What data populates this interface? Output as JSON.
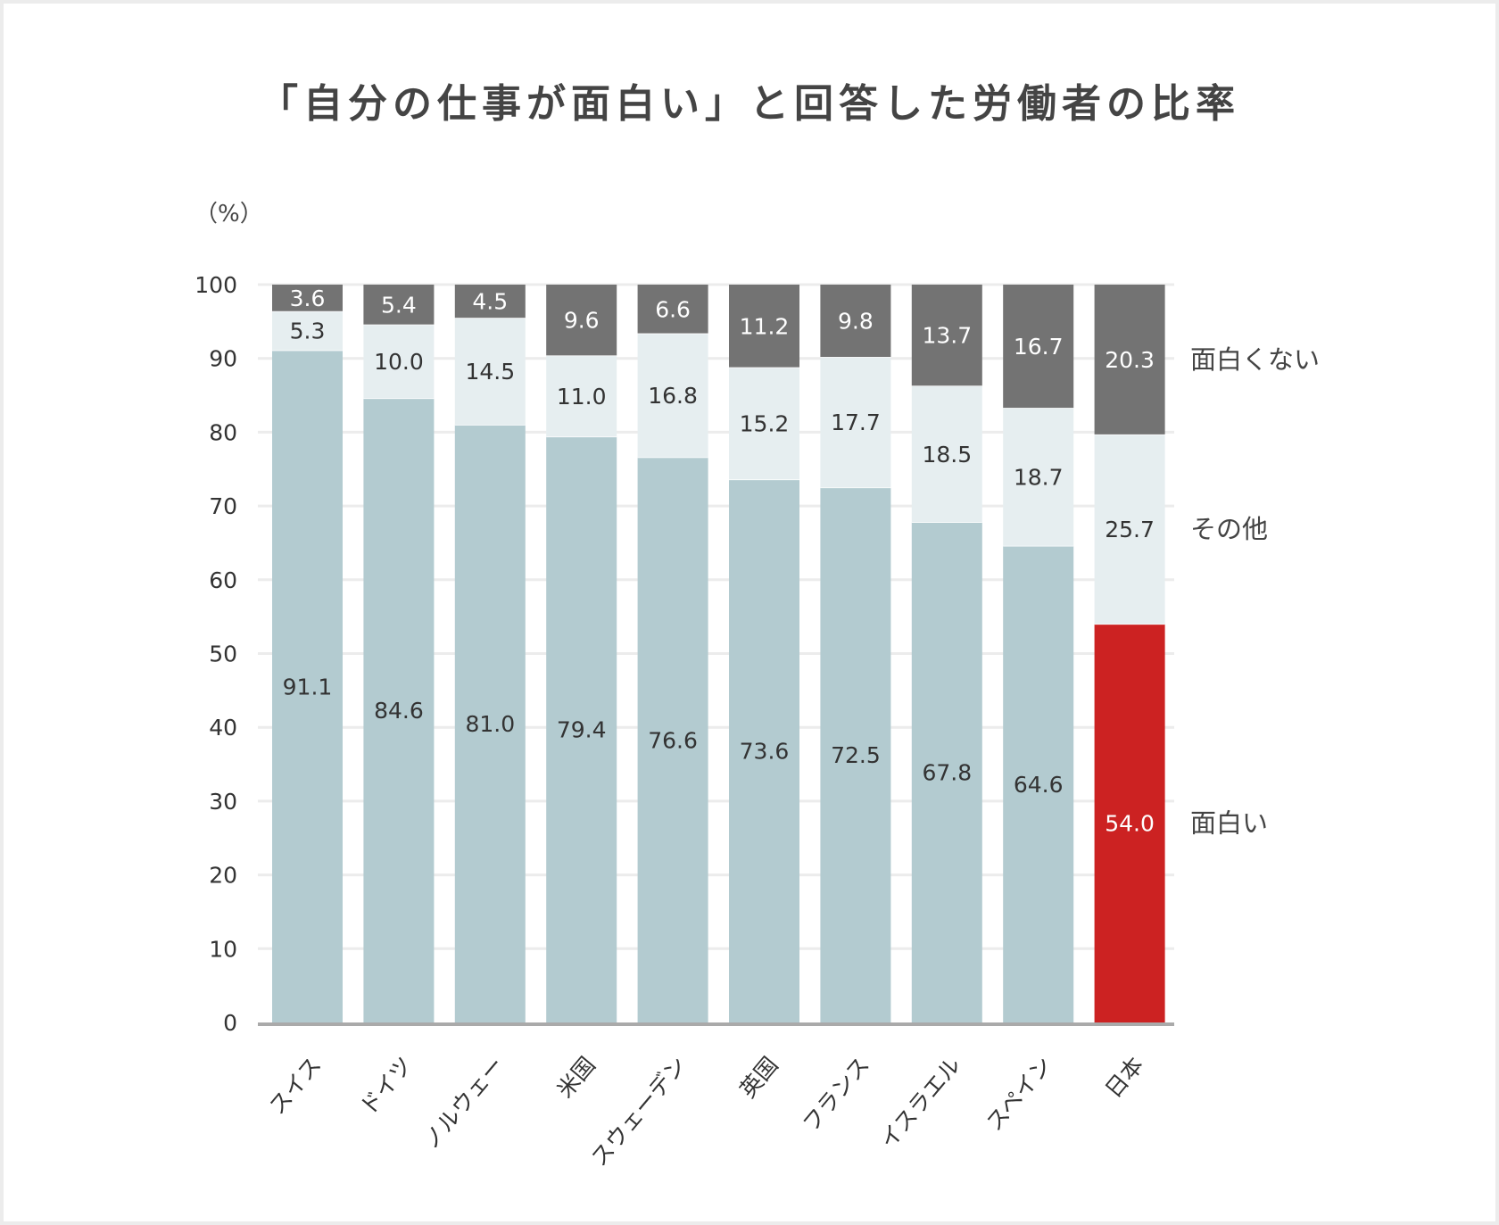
{
  "chart_data": {
    "type": "bar",
    "stacked": true,
    "title": "「自分の仕事が面白い」と回答した労働者の比率",
    "ylabel": "（%）",
    "ylim": [
      0,
      100
    ],
    "yticks": [
      0,
      10,
      20,
      30,
      40,
      50,
      60,
      70,
      80,
      90,
      100
    ],
    "grid": true,
    "legend_placement": "right",
    "categories": [
      "スイス",
      "ドイツ",
      "ノルウェー",
      "米国",
      "スウェーデン",
      "英国",
      "フランス",
      "イスラエル",
      "スペイン",
      "日本"
    ],
    "series": [
      {
        "name": "面白い",
        "color": "#b3cbd0",
        "highlight_color": "#cc2222",
        "highlight_category": "日本",
        "values": [
          91.1,
          84.6,
          81.0,
          79.4,
          76.6,
          73.6,
          72.5,
          67.8,
          64.6,
          54.0
        ]
      },
      {
        "name": "その他",
        "color": "#e6eef0",
        "values": [
          5.3,
          10.0,
          14.5,
          11.0,
          16.8,
          15.2,
          17.7,
          18.5,
          18.7,
          25.7
        ]
      },
      {
        "name": "面白くない",
        "color": "#737373",
        "values": [
          3.6,
          5.4,
          4.5,
          9.6,
          6.6,
          11.2,
          9.8,
          13.7,
          16.7,
          20.3
        ]
      }
    ]
  }
}
